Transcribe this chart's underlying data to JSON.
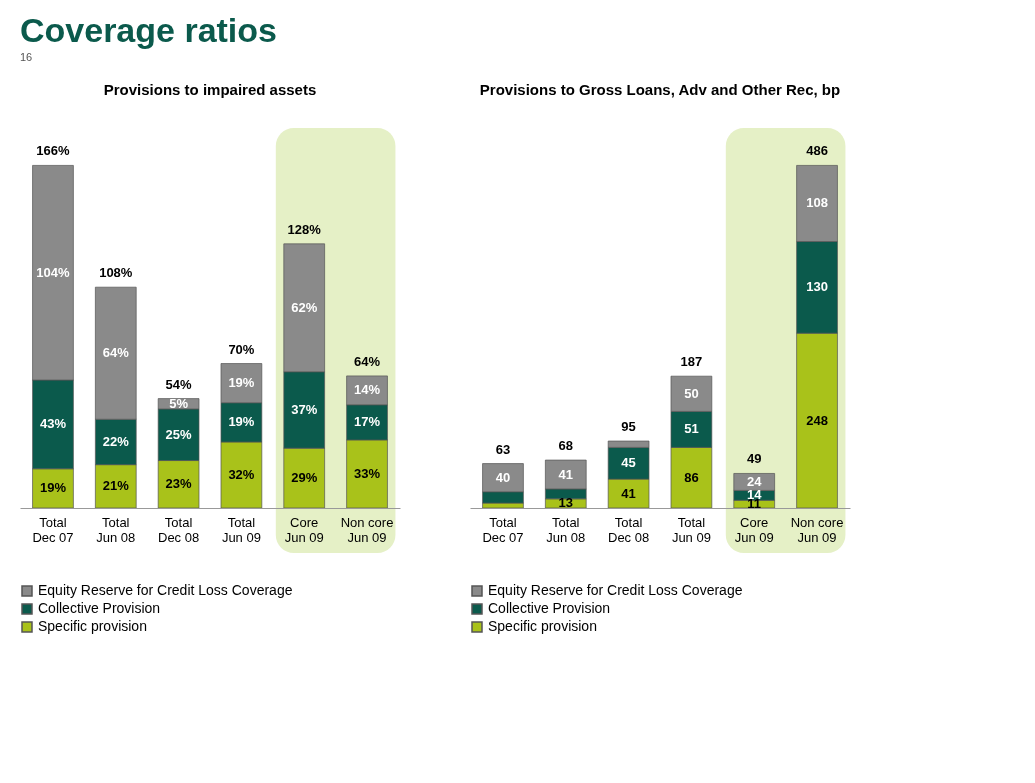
{
  "chart_data": [
    {
      "type": "bar",
      "title": "Provisions to impaired assets",
      "stacked": true,
      "legend": "bottom",
      "grid": false,
      "categories": [
        "Total\nDec 07",
        "Total\nJun 08",
        "Total\nDec 08",
        "Total\nJun 09",
        "Core\nJun 09",
        "Non core\nJun 09"
      ],
      "series": [
        {
          "name": "Specific provision",
          "color": "#a9c21a",
          "values": [
            19,
            21,
            23,
            32,
            29,
            33
          ],
          "value_labels": [
            "19%",
            "21%",
            "23%",
            "32%",
            "29%",
            "33%"
          ]
        },
        {
          "name": "Collective Provision",
          "color": "#0b5a4c",
          "values": [
            43,
            22,
            25,
            19,
            37,
            17
          ],
          "value_labels": [
            "43%",
            "22%",
            "25%",
            "19%",
            "37%",
            "17%"
          ]
        },
        {
          "name": "Equity Reserve for Credit Loss Coverage",
          "color": "#8a8a8a",
          "values": [
            104,
            64,
            5,
            19,
            62,
            14
          ],
          "value_labels": [
            "104%",
            "64%",
            "5%",
            "19%",
            "62%",
            "14%"
          ]
        }
      ],
      "totals": [
        "166%",
        "108%",
        "54%",
        "70%",
        "128%",
        "64%"
      ],
      "bands": [
        {
          "axis": "x",
          "from": "Core\nJun 09",
          "to": "Non core\nJun 09",
          "color": "#e5f0c6"
        }
      ],
      "annotations": [
        "Coverage ratios"
      ]
    },
    {
      "type": "bar",
      "title": "Provisions to Gross Loans, Adv and Other Rec, bp",
      "stacked": true,
      "legend": "bottom",
      "grid": false,
      "categories": [
        "Total\nDec 07",
        "Total\nJun 08",
        "Total\nDec 08",
        "Total\nJun 09",
        "Core\nJun 09",
        "Non core\nJun 09"
      ],
      "series": [
        {
          "name": "Specific provision",
          "color": "#a9c21a",
          "values": [
            7,
            13,
            41,
            86,
            11,
            248
          ],
          "value_labels": [
            null,
            "13",
            "41",
            "86",
            "11",
            "248"
          ]
        },
        {
          "name": "Collective Provision",
          "color": "#0b5a4c",
          "values": [
            16,
            14,
            45,
            51,
            14,
            130
          ],
          "value_labels": [
            null,
            null,
            "45",
            "51",
            "14",
            "130"
          ]
        },
        {
          "name": "Equity Reserve for Credit Loss Coverage",
          "color": "#8a8a8a",
          "values": [
            40,
            41,
            9,
            50,
            24,
            108
          ],
          "value_labels": [
            "40",
            "41",
            null,
            "50",
            "24",
            "108"
          ]
        }
      ],
      "totals": [
        "63",
        "68",
        "95",
        "187",
        "49",
        "486"
      ],
      "bands": [
        {
          "axis": "x",
          "from": "Core\nJun 09",
          "to": "Non core\nJun 09",
          "color": "#e5f0c6"
        }
      ],
      "annotations": [
        "16"
      ]
    }
  ]
}
